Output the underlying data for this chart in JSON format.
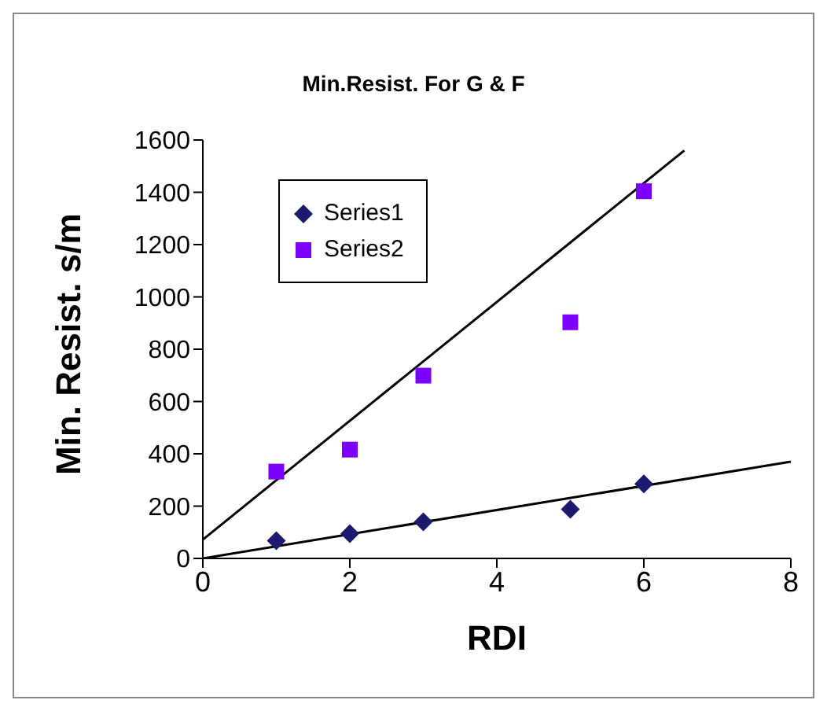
{
  "chart_data": {
    "type": "scatter",
    "title": "Min.Resist. For G & F",
    "xlabel": "RDI",
    "ylabel": "Min. Resist. s/m",
    "x": [
      1,
      2,
      3,
      5,
      6
    ],
    "series": [
      {
        "name": "Series1",
        "color": "#1c1a6e",
        "marker": "diamond",
        "values": [
          68,
          95,
          140,
          188,
          285
        ]
      },
      {
        "name": "Series2",
        "color": "#7b00ff",
        "marker": "square",
        "values": [
          332,
          416,
          699,
          903,
          1404
        ]
      },
      {
        "type": "line",
        "color": "#000000",
        "marker": "none",
        "x": [
          0,
          8
        ],
        "values": [
          0,
          370
        ]
      },
      {
        "type": "line",
        "color": "#000000",
        "marker": "none",
        "x": [
          0,
          6.55
        ],
        "values": [
          72,
          1560
        ]
      }
    ],
    "xlim": [
      0,
      8
    ],
    "xticks": [
      0,
      2,
      4,
      6,
      8
    ],
    "ylim": [
      0,
      1600
    ],
    "yticks": [
      0,
      200,
      400,
      600,
      800,
      1000,
      1200,
      1400,
      1600
    ],
    "grid": false,
    "legend": "top left"
  }
}
